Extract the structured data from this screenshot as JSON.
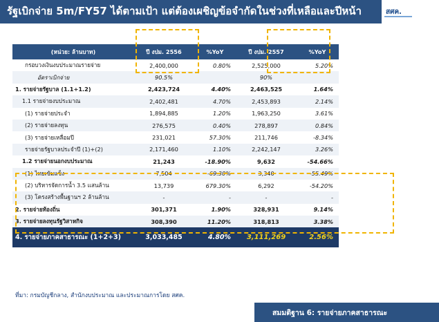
{
  "slide": {
    "title": "รัฐเบิกจ่าย 5m/FY57 ได้ตามเป้า แต่ต้องเผชิญข้อจำกัดในช่วงที่เหลือและปีหน้า",
    "logo_text": "สศค.",
    "source": "ที่มา: กรมบัญชีกลาง, สำนักงบประมาณ และประมาณการโดย สศค.",
    "footer": "สมมติฐาน 6: รายจ่ายภาคสาธารณะ"
  },
  "table": {
    "headers": [
      "(หน่วย: ล้านบาท)",
      "ปี งปม. 2556",
      "%YoY",
      "ปี งปม. 2557",
      "%YoY"
    ],
    "rows": [
      {
        "label": "กรอบวงเงินงบประมาณรายจ่าย",
        "v1": "2,400,000",
        "p1": "0.80%",
        "v2": "2,525,000",
        "p2": "5.20%"
      },
      {
        "label": "อัตราเบิกจ่าย",
        "v1": "90.5%",
        "p1": "",
        "v2": "90%",
        "p2": ""
      },
      {
        "label": "1. รายจ่ายรัฐบาล (1.1+1.2)",
        "v1": "2,423,724",
        "p1": "4.40%",
        "v2": "2,463,525",
        "p2": "1.64%"
      },
      {
        "label": "1.1 รายจ่ายงบประมาณ",
        "v1": "2,402,481",
        "p1": "4.70%",
        "v2": "2,453,893",
        "p2": "2.14%"
      },
      {
        "label": "(1) รายจ่ายประจำ",
        "v1": "1,894,885",
        "p1": "1.20%",
        "v2": "1,963,250",
        "p2": "3.61%"
      },
      {
        "label": "(2) รายจ่ายลงทุน",
        "v1": "276,575",
        "p1": "0.40%",
        "v2": "278,897",
        "p2": "0.84%"
      },
      {
        "label": "(3) รายจ่ายเหลื่อมปี",
        "v1": "231,021",
        "p1": "57.30%",
        "v2": "211,746",
        "p2": "-8.34%"
      },
      {
        "label": "รายจ่ายรัฐบาลประจำปี (1)+(2)",
        "v1": "2,171,460",
        "p1": "1.10%",
        "v2": "2,242,147",
        "p2": "3.26%"
      },
      {
        "label": "1.2 รายจ่ายนอกงบประมาณ",
        "v1": "21,243",
        "p1": "-18.90%",
        "v2": "9,632",
        "p2": "-54.66%"
      },
      {
        "label": "(1) ไทยเข้มแข็ง",
        "v1": "7,504",
        "p1": "-69.30%",
        "v2": "3,340",
        "p2": "-55.49%"
      },
      {
        "label": "(2) บริหารจัดการน้ำ 3.5 แสนล้าน",
        "v1": "13,739",
        "p1": "679.30%",
        "v2": "6,292",
        "p2": "-54.20%"
      },
      {
        "label": "(3) โครงสร้างพื้นฐานฯ 2 ล้านล้าน",
        "v1": "-",
        "p1": "-",
        "v2": "-",
        "p2": "-"
      },
      {
        "label": "2. รายจ่ายท้องถิ่น",
        "v1": "301,371",
        "p1": "1.90%",
        "v2": "328,931",
        "p2": "9.14%"
      },
      {
        "label": "3. รายจ่ายลงทุนรัฐวิสาหกิจ",
        "v1": "308,390",
        "p1": "11.20%",
        "v2": "318,813",
        "p2": "3.38%"
      },
      {
        "label": "4. รายจ่ายภาคสาธารณะ (1+2+3)",
        "v1": "3,033,485",
        "p1": "4.80%",
        "v2": "3,111,269",
        "p2": "2.56%"
      }
    ]
  },
  "colors": {
    "header_bg": "#2c5282",
    "total_bg": "#1e3a66",
    "highlight": "#f2d21b",
    "dashed_frame": "#f0b400"
  }
}
